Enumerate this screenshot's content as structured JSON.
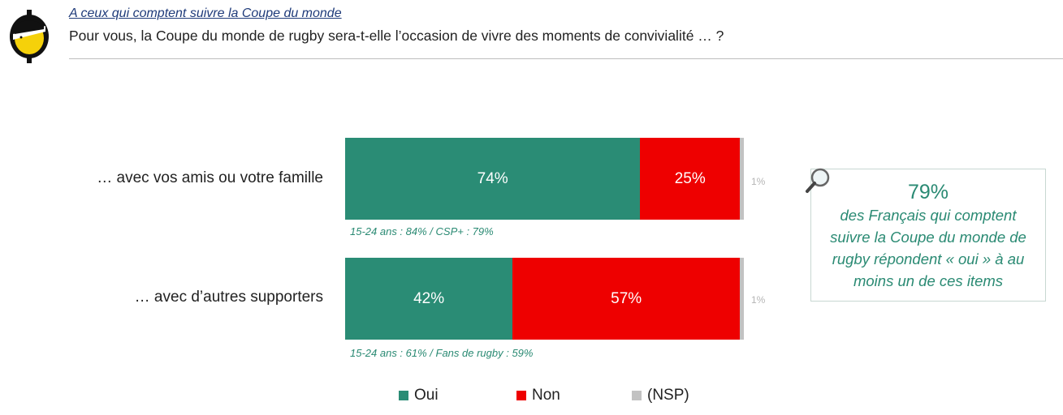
{
  "header": {
    "subtitle": "A ceux qui comptent suivre la Coupe du monde",
    "question": "Pour vous, la Coupe du monde de rugby sera-t-elle l’occasion de vivre des moments de convivialité … ?"
  },
  "colors": {
    "oui": "#2a8c75",
    "non": "#ee0000",
    "nsp": "#c2c2c2",
    "accent": "#2a8a73"
  },
  "chart_data": {
    "type": "bar",
    "orientation": "horizontal-stacked",
    "categories": [
      "… avec vos amis ou votre famille",
      "… avec d’autres supporters"
    ],
    "series": [
      {
        "name": "Oui",
        "values": [
          74,
          42
        ],
        "labels": [
          "74%",
          "42%"
        ]
      },
      {
        "name": "Non",
        "values": [
          25,
          57
        ],
        "labels": [
          "25%",
          "57%"
        ]
      },
      {
        "name": "(NSP)",
        "values": [
          1,
          1
        ],
        "labels": [
          "1%",
          "1%"
        ]
      }
    ],
    "notes": [
      "15-24 ans : 84% / CSP+ : 79%",
      "15-24 ans : 61% / Fans de rugby : 59%"
    ],
    "legend_position": "bottom"
  },
  "callout": {
    "value": "79%",
    "text": "des Français qui comptent suivre la Coupe du monde de rugby répondent « oui » à au moins un de ces items"
  },
  "legend": [
    "Oui",
    "Non",
    "(NSP)"
  ]
}
